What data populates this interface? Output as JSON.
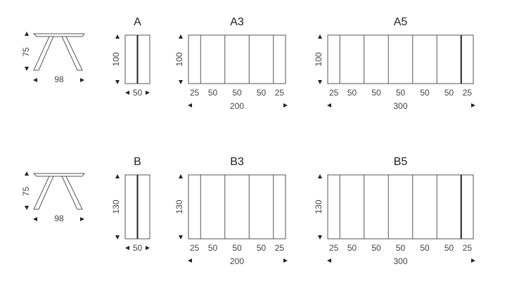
{
  "rows": [
    {
      "side_view": {
        "height": "75",
        "depth": "98"
      },
      "tables": [
        {
          "title": "A",
          "depth": "100",
          "segments": [
            "50"
          ],
          "total": ""
        },
        {
          "title": "A3",
          "depth": "100",
          "segments": [
            "25",
            "50",
            "50",
            "50",
            "25"
          ],
          "total": "200"
        },
        {
          "title": "A5",
          "depth": "100",
          "segments": [
            "25",
            "50",
            "50",
            "50",
            "50",
            "50",
            "25"
          ],
          "total": "300"
        }
      ]
    },
    {
      "side_view": {
        "height": "75",
        "depth": "98"
      },
      "tables": [
        {
          "title": "B",
          "depth": "130",
          "segments": [
            "50"
          ],
          "total": ""
        },
        {
          "title": "B3",
          "depth": "130",
          "segments": [
            "25",
            "50",
            "50",
            "50",
            "25"
          ],
          "total": "200"
        },
        {
          "title": "B5",
          "depth": "130",
          "segments": [
            "25",
            "50",
            "50",
            "50",
            "50",
            "50",
            "25"
          ],
          "total": "300"
        }
      ]
    }
  ],
  "colors": {
    "line": "#555555",
    "text": "#444444"
  }
}
